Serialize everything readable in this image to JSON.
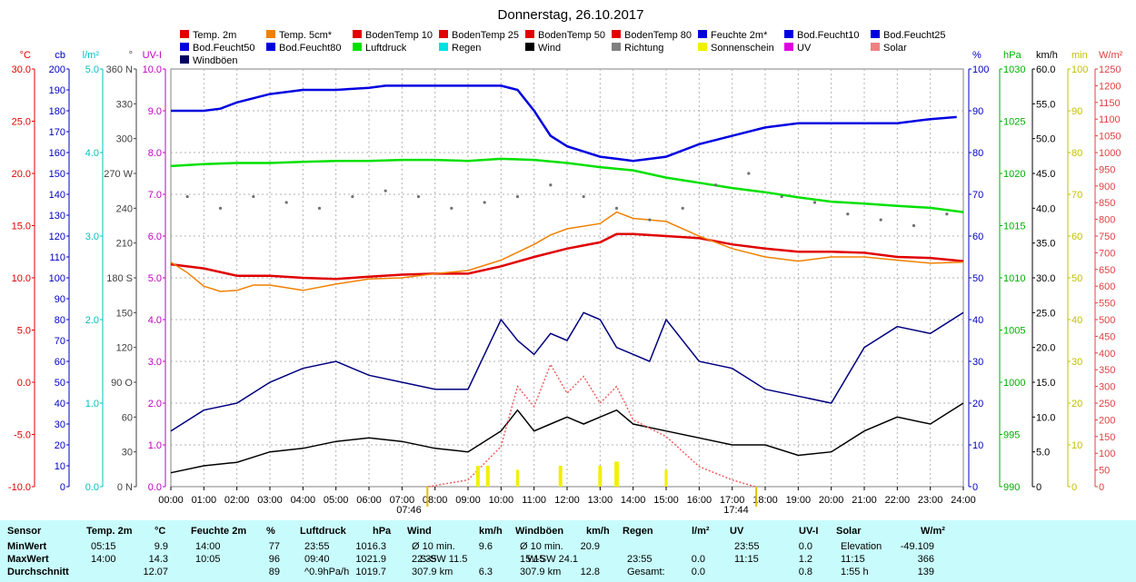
{
  "title": "Donnerstag, 26.10.2017",
  "legend": [
    {
      "label": "Temp. 2m",
      "color": "#e00000"
    },
    {
      "label": "Temp. 5cm*",
      "color": "#f08000"
    },
    {
      "label": "BodenTemp 10",
      "color": "#e00000"
    },
    {
      "label": "BodenTemp 25",
      "color": "#e00000"
    },
    {
      "label": "BodenTemp 50",
      "color": "#e00000"
    },
    {
      "label": "BodenTemp 80",
      "color": "#e00000"
    },
    {
      "label": "Feuchte 2m*",
      "color": "#0000e0"
    },
    {
      "label": "Bod.Feucht10",
      "color": "#0000e0"
    },
    {
      "label": "Bod.Feucht25",
      "color": "#0000e0"
    },
    {
      "label": "Bod.Feucht50",
      "color": "#0000e0"
    },
    {
      "label": "Bod.Feucht80",
      "color": "#0000e0"
    },
    {
      "label": "Luftdruck",
      "color": "#00e000"
    },
    {
      "label": "Regen",
      "color": "#00e0e0"
    },
    {
      "label": "Wind",
      "color": "#000000"
    },
    {
      "label": "Richtung",
      "color": "#808080"
    },
    {
      "label": "Sonnenschein",
      "color": "#f0f000"
    },
    {
      "label": "UV",
      "color": "#e000e0"
    },
    {
      "label": "Solar",
      "color": "#f08080"
    },
    {
      "label": "Windböen",
      "color": "#000060"
    }
  ],
  "axes_left": [
    {
      "unit": "°C",
      "color": "#e00000",
      "ticks": [
        "30.0",
        "25.0",
        "20.0",
        "15.0",
        "10.0",
        "5.0",
        "0.0",
        "-5.0",
        "-10.0"
      ]
    },
    {
      "unit": "cb",
      "color": "#0000c0",
      "ticks": [
        "200",
        "190",
        "180",
        "170",
        "160",
        "150",
        "140",
        "130",
        "120",
        "110",
        "100",
        "90",
        "80",
        "70",
        "60",
        "50",
        "40",
        "30",
        "20",
        "10",
        "0"
      ]
    },
    {
      "unit": "l/m²",
      "color": "#00c0c0",
      "ticks": [
        "5.0",
        "4.0",
        "3.0",
        "2.0",
        "1.0",
        "0.0"
      ]
    },
    {
      "unit": "°",
      "color": "#404040",
      "ticks": [
        "360 N",
        "330",
        "300",
        "270 W",
        "240",
        "210",
        "180 S",
        "150",
        "120",
        "90 O",
        "60",
        "30",
        "0 N"
      ]
    },
    {
      "unit": "UV-I",
      "color": "#c000c0",
      "ticks": [
        "10.0",
        "9.0",
        "8.0",
        "7.0",
        "6.0",
        "5.0",
        "4.0",
        "3.0",
        "2.0",
        "1.0",
        "0.0"
      ]
    }
  ],
  "axes_right": [
    {
      "unit": "%",
      "color": "#0000c0",
      "ticks": [
        "100",
        "90",
        "80",
        "70",
        "60",
        "50",
        "40",
        "30",
        "20",
        "10",
        "0"
      ]
    },
    {
      "unit": "hPa",
      "color": "#00b000",
      "ticks": [
        "1030",
        "1025",
        "1020",
        "1015",
        "1010",
        "1005",
        "1000",
        "995",
        "990"
      ]
    },
    {
      "unit": "km/h",
      "color": "#000000",
      "ticks": [
        "60.0",
        "55.0",
        "50.0",
        "45.0",
        "40.0",
        "35.0",
        "30.0",
        "25.0",
        "20.0",
        "15.0",
        "10.0",
        "5.0",
        "0"
      ]
    },
    {
      "unit": "min",
      "color": "#c0c000",
      "ticks": [
        "100",
        "90",
        "80",
        "70",
        "60",
        "50",
        "40",
        "30",
        "20",
        "10",
        "0"
      ]
    },
    {
      "unit": "W/m²",
      "color": "#e04040",
      "ticks": [
        "1250",
        "1200",
        "1150",
        "1100",
        "1050",
        "1000",
        "950",
        "900",
        "850",
        "800",
        "750",
        "700",
        "650",
        "600",
        "550",
        "500",
        "450",
        "400",
        "350",
        "300",
        "250",
        "200",
        "150",
        "100",
        "50",
        "0"
      ]
    }
  ],
  "x_ticks": [
    "00:00",
    "01:00",
    "02:00",
    "03:00",
    "04:00",
    "05:00",
    "06:00",
    "07:00",
    "08:00",
    "09:00",
    "10:00",
    "11:00",
    "12:00",
    "13:00",
    "14:00",
    "15:00",
    "16:00",
    "17:00",
    "18:00",
    "19:00",
    "20:00",
    "21:00",
    "22:00",
    "23:00",
    "24:00"
  ],
  "sunrise": "07:46",
  "sunset": "17:44",
  "colors": {
    "pressure": "#00e000",
    "humidity": "#0000e0",
    "temp": "#e00000",
    "temp5": "#f08000",
    "wind": "#000000",
    "gust": "#000080",
    "solar": "#f06060",
    "uv": "#e000e0",
    "sun": "#f0f000",
    "direction": "#707070"
  },
  "chart_data": {
    "type": "line",
    "x_unit": "hours",
    "xlim": [
      0,
      24
    ],
    "series": [
      {
        "name": "Feuchte 2m*",
        "unit": "%",
        "ylim": [
          0,
          100
        ],
        "x": [
          0,
          1,
          1.5,
          2,
          3,
          4,
          5,
          6,
          6.5,
          7,
          8,
          9,
          10,
          10.5,
          11,
          11.5,
          12,
          13,
          13.5,
          14,
          15,
          16,
          17,
          18,
          19,
          20,
          21,
          22,
          23,
          23.8
        ],
        "values": [
          90,
          90,
          90.5,
          92,
          94,
          95,
          95,
          95.5,
          96,
          96,
          96,
          96,
          96,
          95,
          90,
          84,
          81.5,
          79,
          78.5,
          78,
          79,
          82,
          84,
          86,
          87,
          87,
          87,
          87,
          88,
          88.5
        ]
      },
      {
        "name": "Luftdruck",
        "unit": "hPa",
        "ylim": [
          990,
          1030
        ],
        "x": [
          0,
          1,
          2,
          3,
          4,
          5,
          6,
          7,
          8,
          9,
          10,
          11,
          12,
          13,
          14,
          15,
          16,
          17,
          18,
          19,
          20,
          21,
          22,
          23,
          24
        ],
        "values": [
          1020.7,
          1020.9,
          1021.0,
          1021.0,
          1021.1,
          1021.2,
          1021.2,
          1021.3,
          1021.3,
          1021.2,
          1021.4,
          1021.3,
          1021.0,
          1020.6,
          1020.3,
          1019.6,
          1019.1,
          1018.6,
          1018.2,
          1017.7,
          1017.3,
          1017.1,
          1016.9,
          1016.7,
          1016.3
        ]
      },
      {
        "name": "Temp. 2m",
        "unit": "°C",
        "ylim": [
          -10,
          30
        ],
        "x": [
          0,
          1,
          2,
          3,
          4,
          5,
          6,
          7,
          8,
          9,
          10,
          11,
          12,
          13,
          13.5,
          14,
          15,
          16,
          17,
          18,
          19,
          20,
          21,
          22,
          23,
          24
        ],
        "values": [
          11.3,
          10.9,
          10.2,
          10.2,
          10.0,
          9.9,
          10.1,
          10.3,
          10.4,
          10.4,
          11.1,
          12.0,
          12.8,
          13.4,
          14.2,
          14.2,
          14.0,
          13.8,
          13.2,
          12.8,
          12.5,
          12.5,
          12.4,
          12.0,
          11.9,
          11.6
        ]
      },
      {
        "name": "Temp. 5cm*",
        "unit": "°C",
        "ylim": [
          -10,
          30
        ],
        "x": [
          0,
          0.5,
          1,
          1.5,
          2,
          2.5,
          3,
          4,
          5,
          6,
          7,
          8,
          9,
          10,
          11,
          11.5,
          12,
          13,
          13.5,
          14,
          15,
          16,
          17,
          18,
          19,
          20,
          21,
          22,
          23,
          24
        ],
        "values": [
          11.5,
          10.5,
          9.2,
          8.7,
          8.8,
          9.3,
          9.3,
          8.8,
          9.4,
          9.9,
          10.0,
          10.4,
          10.7,
          11.7,
          13.2,
          14.1,
          14.7,
          15.2,
          16.3,
          15.7,
          15.4,
          14.0,
          12.8,
          12.0,
          11.6,
          12.0,
          12.0,
          11.7,
          11.4,
          11.5
        ]
      },
      {
        "name": "Wind",
        "unit": "km/h",
        "ylim": [
          0,
          60
        ],
        "x": [
          0,
          1,
          2,
          3,
          4,
          5,
          6,
          7,
          8,
          9,
          10,
          10.5,
          11,
          11.5,
          12,
          12.5,
          13,
          13.5,
          14,
          15,
          16,
          17,
          18,
          19,
          20,
          21,
          22,
          23,
          24
        ],
        "values": [
          2,
          3,
          3.5,
          5,
          5.5,
          6.5,
          7,
          6.5,
          5.5,
          5,
          8,
          11,
          8,
          9,
          10,
          9,
          10,
          11,
          9,
          8,
          7,
          6,
          6,
          4.5,
          5,
          8,
          10,
          9,
          12
        ]
      },
      {
        "name": "Windböen",
        "unit": "km/h",
        "ylim": [
          0,
          60
        ],
        "x": [
          0,
          1,
          2,
          3,
          4,
          5,
          6,
          7,
          8,
          9,
          10,
          10.5,
          11,
          11.5,
          12,
          12.5,
          13,
          13.5,
          14,
          14.5,
          15,
          16,
          17,
          18,
          19,
          20,
          21,
          22,
          23,
          24
        ],
        "values": [
          8,
          11,
          12,
          15,
          17,
          18,
          16,
          15,
          14,
          14,
          24,
          21,
          19,
          22,
          21,
          25,
          24,
          20,
          19,
          18,
          24,
          18,
          17,
          14,
          13,
          12,
          20,
          23,
          22,
          25
        ]
      },
      {
        "name": "Solar",
        "unit": "W/m²",
        "ylim": [
          0,
          1250
        ],
        "x": [
          7.8,
          9,
          10,
          10.5,
          11,
          11.5,
          12,
          12.5,
          13,
          13.5,
          14,
          15,
          16,
          17,
          17.7
        ],
        "values": [
          0,
          20,
          120,
          300,
          240,
          366,
          280,
          330,
          250,
          300,
          200,
          150,
          60,
          20,
          0
        ]
      },
      {
        "name": "Sonnenschein",
        "unit": "min",
        "ylim": [
          0,
          100
        ],
        "x": [
          9.3,
          9.6,
          10.5,
          11.8,
          13,
          13.5,
          15
        ],
        "values": [
          5,
          5,
          4,
          5,
          5,
          6,
          4
        ]
      },
      {
        "name": "Richtung",
        "unit": "°",
        "ylim": [
          0,
          360
        ],
        "x": [
          0.5,
          1.5,
          2.5,
          3.5,
          4.5,
          5.5,
          6.5,
          7.5,
          8.5,
          9.5,
          10.5,
          11.5,
          12.5,
          13.5,
          14.5,
          15.5,
          16.5,
          17.5,
          18.5,
          19.5,
          20.5,
          21.5,
          22.5,
          23.5
        ],
        "values": [
          250,
          240,
          250,
          245,
          240,
          250,
          255,
          250,
          240,
          245,
          250,
          260,
          250,
          240,
          230,
          240,
          260,
          270,
          250,
          245,
          235,
          230,
          225,
          235
        ]
      }
    ]
  },
  "table": {
    "headers": [
      {
        "label": "Sensor",
        "unit": ""
      },
      {
        "label": "Temp. 2m",
        "unit": "°C"
      },
      {
        "label": "Feuchte 2m",
        "unit": "%"
      },
      {
        "label": "Luftdruck",
        "unit": "hPa"
      },
      {
        "label": "Wind",
        "unit": "km/h"
      },
      {
        "label": "Windböen",
        "unit": "km/h"
      },
      {
        "label": "Regen",
        "unit": "l/m²"
      },
      {
        "label": "UV",
        "unit": "UV-I"
      },
      {
        "label": "Solar",
        "unit": "W/m²"
      }
    ],
    "rows": [
      {
        "label": "MinWert",
        "cells": [
          [
            "05:15",
            "9.9"
          ],
          [
            "14:00",
            "77"
          ],
          [
            "23:55",
            "1016.3"
          ],
          [
            "Ø 10 min.",
            "",
            "9.6"
          ],
          [
            "Ø 10 min.",
            "",
            "20.9"
          ],
          [
            "",
            ""
          ],
          [
            "23:55",
            "0.0"
          ],
          [
            "Elevation",
            "-49.109"
          ]
        ]
      },
      {
        "label": "MaxWert",
        "cells": [
          [
            "14:00",
            "14.3"
          ],
          [
            "10:05",
            "96"
          ],
          [
            "09:40",
            "1021.9"
          ],
          [
            "22:35",
            "S-SW 11.5",
            ""
          ],
          [
            "15:15",
            "W-SW 24.1",
            ""
          ],
          [
            "23:55",
            "0.0"
          ],
          [
            "11:15",
            "1.2"
          ],
          [
            "11:15",
            "366"
          ]
        ]
      },
      {
        "label": "Durchschnitt",
        "cells": [
          [
            "",
            "12.07"
          ],
          [
            "",
            "89"
          ],
          [
            "^0.9hPa/h",
            "1019.7"
          ],
          [
            "307.9 km",
            "",
            "6.3"
          ],
          [
            "307.9 km",
            "",
            "12.8"
          ],
          [
            "Gesamt:",
            "0.0"
          ],
          [
            "",
            "0.8"
          ],
          [
            "1:55 h",
            "139"
          ]
        ]
      }
    ]
  }
}
